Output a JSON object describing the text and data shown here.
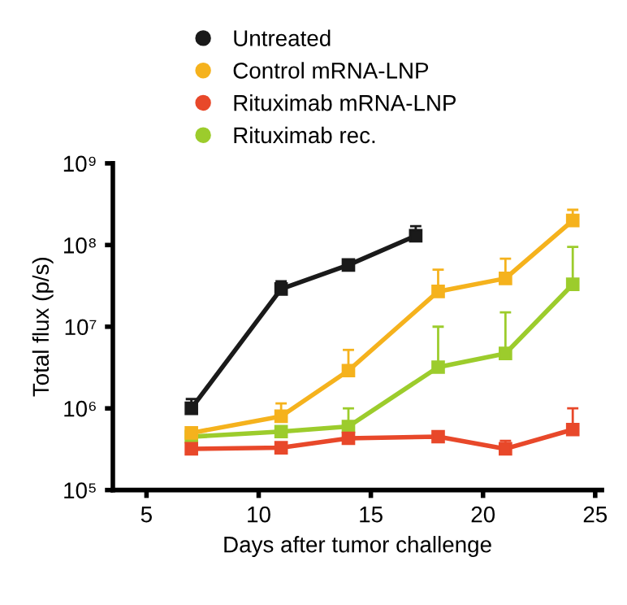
{
  "chart_data": {
    "type": "line",
    "xlabel": "Days after tumor challenge",
    "ylabel": "Total flux (p/s)",
    "log": true,
    "marker": "square",
    "legend": "top",
    "grid": false,
    "xlim": [
      3.5,
      25.3
    ],
    "xticks": [
      5,
      10,
      15,
      20,
      25
    ],
    "ylim": [
      100000,
      1000000000
    ],
    "yticks": [
      {
        "value": 100000,
        "label": "10⁵"
      },
      {
        "value": 1000000,
        "label": "10⁶"
      },
      {
        "value": 10000000,
        "label": "10⁷"
      },
      {
        "value": 100000000,
        "label": "10⁸"
      },
      {
        "value": 1000000000,
        "label": "10⁹"
      }
    ],
    "series": [
      {
        "name": "Untreated",
        "color": "#1a1a1a",
        "x": [
          7,
          11,
          14,
          17
        ],
        "values": [
          1000000,
          29000000,
          57000000,
          130000000
        ],
        "errors": [
          [
            1000000,
            1300000
          ],
          [
            29000000,
            36000000
          ],
          [
            57000000,
            62000000
          ],
          [
            130000000,
            170000000
          ]
        ]
      },
      {
        "name": "Control mRNA-LNP",
        "color": "#f5b21d",
        "x": [
          7,
          11,
          14,
          18,
          21,
          24
        ],
        "values": [
          500000,
          800000,
          2900000,
          27000000,
          39000000,
          200000000
        ],
        "errors": [
          [
            500000,
            560000
          ],
          [
            800000,
            1150000
          ],
          [
            2900000,
            5200000
          ],
          [
            27000000,
            50000000
          ],
          [
            39000000,
            68000000
          ],
          [
            200000000,
            270000000
          ]
        ]
      },
      {
        "name": "Rituximab mRNA-LNP",
        "color": "#e8482a",
        "x": [
          7,
          11,
          14,
          18,
          21,
          24
        ],
        "values": [
          320000,
          330000,
          430000,
          450000,
          320000,
          550000
        ],
        "errors": [
          null,
          null,
          null,
          null,
          [
            320000,
            400000
          ],
          [
            550000,
            1000000
          ]
        ]
      },
      {
        "name": "Rituximab rec.",
        "color": "#9ccc2c",
        "x": [
          7,
          11,
          14,
          18,
          21,
          24
        ],
        "values": [
          450000,
          520000,
          600000,
          3200000,
          4700000,
          33000000
        ],
        "errors": [
          null,
          null,
          [
            600000,
            1000000
          ],
          [
            3200000,
            10000000
          ],
          [
            4700000,
            15000000
          ],
          [
            33000000,
            95000000
          ]
        ]
      }
    ]
  }
}
